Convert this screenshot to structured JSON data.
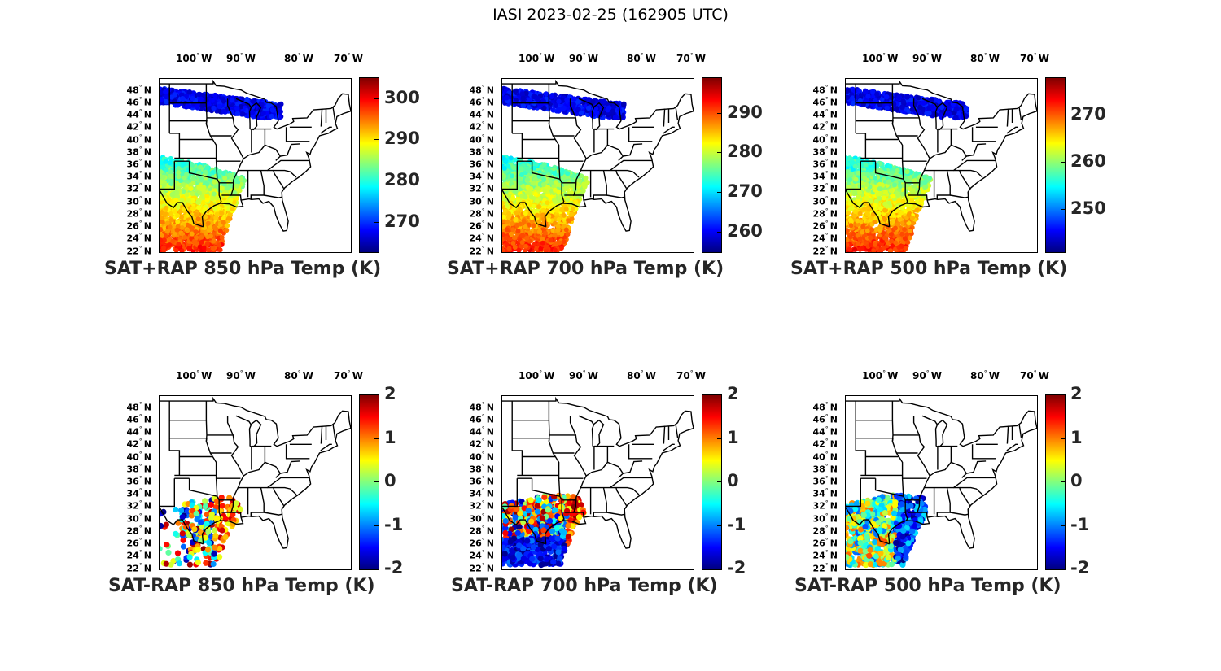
{
  "figure": {
    "title": "IASI 2023-02-25 (162905 UTC)"
  },
  "axes": {
    "lon_ticks": [
      "100",
      "90",
      "80",
      "70"
    ],
    "lon_hemi": "W",
    "lat_ticks": [
      "48",
      "46",
      "44",
      "42",
      "40",
      "38",
      "36",
      "34",
      "32",
      "30",
      "28",
      "26",
      "24",
      "22"
    ],
    "lat_hemi": "N",
    "degree_symbol": "°"
  },
  "colors": {
    "jet_low": "#00007f",
    "jet_mid": "#7fff7f",
    "jet_high": "#7f0000",
    "text": "#262626"
  },
  "chart_data": [
    {
      "type": "scatter",
      "title": "SAT+RAP 850 hPa Temp (K)",
      "colorbar": {
        "min": 263,
        "max": 305,
        "ticks": [
          "300",
          "290",
          "280",
          "270"
        ],
        "tick_values": [
          300,
          290,
          280,
          270
        ]
      },
      "field": "sum",
      "level": 850
    },
    {
      "type": "scatter",
      "title": "SAT+RAP 700 hPa Temp (K)",
      "colorbar": {
        "min": 255,
        "max": 299,
        "ticks": [
          "290",
          "280",
          "270",
          "260"
        ],
        "tick_values": [
          290,
          280,
          270,
          260
        ]
      },
      "field": "sum",
      "level": 700
    },
    {
      "type": "scatter",
      "title": "SAT+RAP 500 hPa Temp (K)",
      "colorbar": {
        "min": 241,
        "max": 278,
        "ticks": [
          "270",
          "260",
          "250"
        ],
        "tick_values": [
          270,
          260,
          250
        ]
      },
      "field": "sum",
      "level": 500
    },
    {
      "type": "scatter",
      "title": "SAT-RAP 850 hPa Temp (K)",
      "colorbar": {
        "min": -2,
        "max": 2,
        "ticks": [
          "2",
          "1",
          "0",
          "-1",
          "-2"
        ],
        "tick_values": [
          2,
          1,
          0,
          -1,
          -2
        ]
      },
      "field": "diff",
      "level": 850
    },
    {
      "type": "scatter",
      "title": "SAT-RAP 700 hPa Temp (K)",
      "colorbar": {
        "min": -2,
        "max": 2,
        "ticks": [
          "2",
          "1",
          "0",
          "-1",
          "-2"
        ],
        "tick_values": [
          2,
          1,
          0,
          -1,
          -2
        ]
      },
      "field": "diff",
      "level": 700
    },
    {
      "type": "scatter",
      "title": "SAT-RAP 500 hPa Temp (K)",
      "colorbar": {
        "min": -2,
        "max": 2,
        "ticks": [
          "2",
          "1",
          "0",
          "-1",
          "-2"
        ],
        "tick_values": [
          2,
          1,
          0,
          -1,
          -2
        ]
      },
      "field": "diff",
      "level": 500
    }
  ]
}
